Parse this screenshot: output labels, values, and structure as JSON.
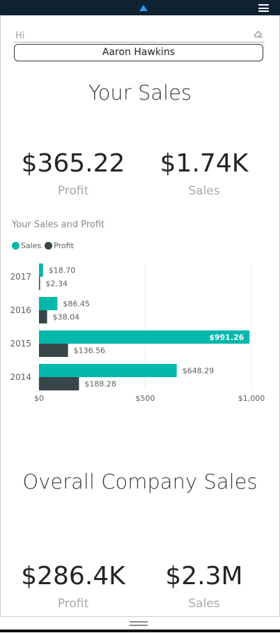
{
  "filter": {
    "text_placeholder": "Hi",
    "selected_user": "Aaron Hawkins"
  },
  "your_sales": {
    "title": "Your Sales",
    "profit_value": "$365.22",
    "profit_label": "Profit",
    "sales_value": "$1.74K",
    "sales_label": "Sales"
  },
  "chart_data": {
    "type": "bar",
    "orientation": "horizontal",
    "title": "Your Sales and Profit",
    "categories": [
      "2017",
      "2016",
      "2015",
      "2014"
    ],
    "series": [
      {
        "name": "Sales",
        "values": [
          18.7,
          86.45,
          991.26,
          648.29
        ],
        "labels": [
          "$18.70",
          "$86.45",
          "$991.26",
          "$648.29"
        ]
      },
      {
        "name": "Profit",
        "values": [
          2.34,
          38.04,
          136.56,
          188.28
        ],
        "labels": [
          "$2.34",
          "$38.04",
          "$136.56",
          "$188.28"
        ]
      }
    ],
    "xlim": [
      0,
      1000
    ],
    "x_ticks": [
      "$0",
      "$500",
      "$1,000"
    ],
    "colors": {
      "Sales": "#01b8aa",
      "Profit": "#374649"
    },
    "legend_position": "top-left",
    "grid": true
  },
  "company_sales": {
    "title": "Overall Company Sales",
    "profit_value": "$286.4K",
    "profit_label": "Profit",
    "sales_value": "$2.3M",
    "sales_label": "Sales"
  }
}
